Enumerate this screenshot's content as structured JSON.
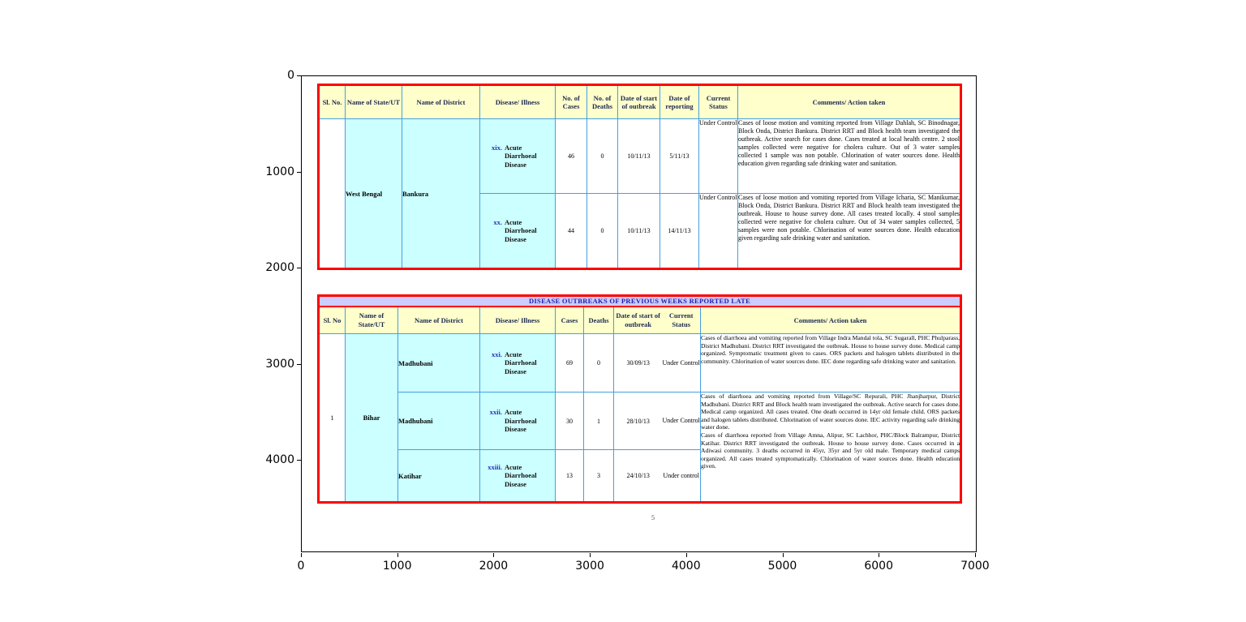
{
  "axes": {
    "x_ticks": [
      "0",
      "1000",
      "2000",
      "3000",
      "4000",
      "5000",
      "6000",
      "7000"
    ],
    "y_ticks": [
      "0",
      "1000",
      "2000",
      "3000",
      "4000"
    ]
  },
  "page_footer": {
    "page_number": "5"
  },
  "colors": {
    "table_border_red": "#ff0000",
    "grid_line_blue": "#44a0e0",
    "header_bg_yellow": "#ffffcc",
    "cell_bg_cyan": "#ccffff",
    "title_bg_lavender": "#ccccff",
    "header_text_navy": "#1c2951",
    "numeral_blue": "#2233bb"
  },
  "table_current_week": {
    "headers": [
      "Sl. No.",
      "Name of State/UT",
      "Name of District",
      "Disease/ Illness",
      "No. of Cases",
      "No. of Deaths",
      "Date of start of outbreak",
      "Date of reporting",
      "Current Status",
      "Comments/ Action taken"
    ],
    "sl_no": "",
    "state": "West Bengal",
    "district": "Bankura",
    "rows": [
      {
        "index": "xix.",
        "disease": "Acute Diarrhoeal Disease",
        "cases": "46",
        "deaths": "0",
        "date_start": "10/11/13",
        "date_reporting": "5/11/13",
        "status": "Under Control",
        "comments": "Cases of loose motion and vomiting reported from Village Dahlah, SC Binodnagar, Block Onda, District Bankura. District RRT and Block health team investigated the outbreak. Active search for cases done. Cases treated at local health centre. 2 stool samples collected were negative for cholera culture. Out of 3 water samples collected 1 sample was non potable. Chlorination of water sources done. Health education given regarding safe drinking water and sanitation."
      },
      {
        "index": "xx.",
        "disease": "Acute Diarrhoeal Disease",
        "cases": "44",
        "deaths": "0",
        "date_start": "10/11/13",
        "date_reporting": "14/11/13",
        "status": "Under Control",
        "comments": "Cases of loose motion and vomiting reported from Village Icharia, SC Manikumar, Block Onda, District Bankura. District RRT and Block health team investigated the outbreak. House to house survey done. All cases treated locally. 4 stool samples collected were negative for cholera culture. Out of 34 water samples collected, 5 samples were non potable. Chlorination of water sources done. Health education given regarding safe drinking water and sanitation."
      }
    ]
  },
  "table_previous_weeks": {
    "title": "DISEASE OUTBREAKS OF PREVIOUS WEEKS REPORTED LATE",
    "headers": [
      "Sl. No",
      "Name of State/UT",
      "Name of District",
      "Disease/ Illness",
      "Cases",
      "Deaths",
      "Date of start of outbreak",
      "Current Status",
      "Comments/ Action taken"
    ],
    "sl_no": "1",
    "state": "Bihar",
    "rows": [
      {
        "index": "xxi.",
        "disease": "Acute Diarrhoeal Disease",
        "district": "Madhubani",
        "cases": "69",
        "deaths": "0",
        "date_start": "30/09/13",
        "status": "Under Control",
        "comments": "Cases of diarrhoea and vomiting reported from Village Indra Mandal tola, SC Sugarall, PHC Phulparass, District Madhubani. District RRT investigated the outbreak. House to house survey done. Medical camp organized. Symptomatic treatment given to cases. ORS packets and halogen tablets distributed in the community. Chlorination of water sources done. IEC done regarding safe drinking water and sanitation."
      },
      {
        "index": "xxii.",
        "disease": "Acute Diarrhoeal Disease",
        "district": "Madhubani",
        "cases": "30",
        "deaths": "1",
        "date_start": "28/10/13",
        "status": "Under Control",
        "comments": "Cases of diarrhoea and vomiting reported from Village/SC Repurali, PHC Jhanjharpur, District Madhubani. District RRT and Block health team investigated the outbreak. Active search for cases done. Medical camp organized. All cases treated. One death occurred in 14yr old female child. ORS packets and halogen tablets distributed. Chlorination of water sources done. IEC activity regarding safe drinking water done."
      },
      {
        "index": "xxiii.",
        "disease": "Acute Diarrhoeal Disease",
        "district": "Katihar",
        "cases": "13",
        "deaths": "3",
        "date_start": "24/10/13",
        "status": "Under control",
        "comments": "Cases of diarrhoea reported from Village Amna, Alipur, SC Lachhor, PHC/Block Balrampur, District Katihar. District RRT investigated the outbreak. House to house survey done. Cases occurred in a Adiwasi community. 3 deaths occurred in 45yr, 35yr and 5yr old male. Temporary medical camps organized. All cases treated symptomatically. Chlorination of water sources done. Health education given."
      }
    ]
  }
}
